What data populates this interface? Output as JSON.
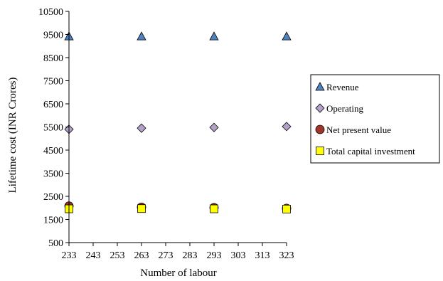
{
  "chart_data": {
    "type": "scatter",
    "xlabel": "Number of labour",
    "ylabel": "Lifetime cost (INR Crores)",
    "xlim": [
      233,
      323
    ],
    "ylim": [
      500,
      10500
    ],
    "x_ticks": [
      233,
      243,
      253,
      263,
      273,
      283,
      293,
      303,
      313,
      323
    ],
    "y_ticks": [
      500,
      1500,
      2500,
      3500,
      4500,
      5500,
      6500,
      7500,
      8500,
      9500,
      10500
    ],
    "x": [
      233,
      263,
      293,
      323
    ],
    "grid": false,
    "legend_position": "right",
    "series": [
      {
        "name": "Revenue",
        "marker": "triangle",
        "color": "#4f81bd",
        "values": [
          9420,
          9420,
          9420,
          9420
        ]
      },
      {
        "name": "Operating",
        "marker": "diamond",
        "color": "#b3a2c7",
        "values": [
          5400,
          5450,
          5480,
          5520
        ]
      },
      {
        "name": "Net present value",
        "marker": "circle",
        "color": "#a0362a",
        "values": [
          2080,
          2030,
          2010,
          1980
        ]
      },
      {
        "name": "Total capital investment",
        "marker": "square",
        "color": "#ffff00",
        "values": [
          1960,
          1970,
          1960,
          1950
        ]
      }
    ]
  }
}
